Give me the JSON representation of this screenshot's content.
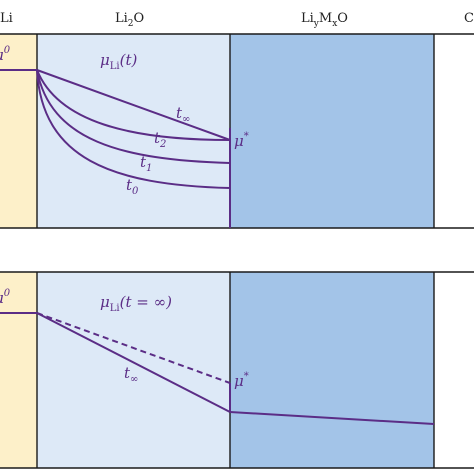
{
  "headers": {
    "li": {
      "main": "Li",
      "sub": "",
      "tail": ""
    },
    "li2o": {
      "main": "Li",
      "sub": "2",
      "tail": "O"
    },
    "liymxo": {
      "main": "Li",
      "sub1": "y",
      "mid": "M",
      "sub2": "x",
      "tail": "O"
    },
    "cut": "C"
  },
  "top_panel": {
    "left_mu": {
      "main": "μ",
      "sup": "0"
    },
    "function_label": {
      "mu": "μ",
      "sub": "Li",
      "arg": "(t)"
    },
    "mu_star": {
      "main": "μ",
      "sup": "*"
    },
    "curves": [
      {
        "name": "t",
        "sub": "∞"
      },
      {
        "name": "t",
        "sub": "2"
      },
      {
        "name": "t",
        "sub": "1"
      },
      {
        "name": "t",
        "sub": "0"
      }
    ]
  },
  "bottom_panel": {
    "left_mu": {
      "main": "μ",
      "sup": "0"
    },
    "function_label": {
      "mu": "μ",
      "sub": "Li",
      "arg": "(t = ∞)"
    },
    "mu_star": {
      "main": "μ",
      "sup": "*"
    },
    "curve": {
      "name": "t",
      "sub": "∞"
    }
  },
  "colors": {
    "li_region": "#fdf0c9",
    "li2o_region": "#dde9f7",
    "liymxo_region": "#a3c4e8",
    "curve": "#5b2d86",
    "border": "#1a1a1a"
  }
}
